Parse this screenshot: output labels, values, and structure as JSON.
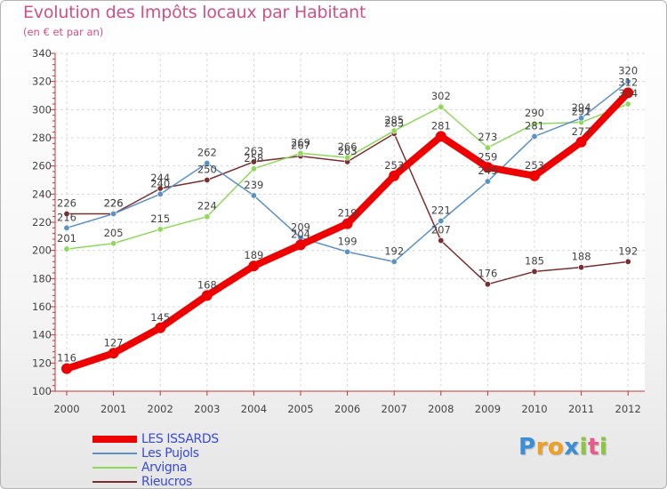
{
  "chart_data": {
    "type": "line",
    "title": "Evolution des Impôts locaux par Habitant",
    "subtitle": "(en € et par an)",
    "xlabel": "",
    "ylabel": "",
    "categories": [
      "2000",
      "2001",
      "2002",
      "2003",
      "2004",
      "2005",
      "2006",
      "2007",
      "2008",
      "2009",
      "2010",
      "2011",
      "2012"
    ],
    "ylim": [
      100,
      340
    ],
    "yticks": [
      100,
      120,
      140,
      160,
      180,
      200,
      220,
      240,
      260,
      280,
      300,
      320,
      340
    ],
    "grid": true,
    "legend_position": "bottom-left",
    "series": [
      {
        "name": "Rieucros",
        "color": "#7a2e2e",
        "values": [
          226,
          226,
          244,
          250,
          263,
          267,
          263,
          283,
          207,
          176,
          185,
          188,
          192
        ]
      },
      {
        "name": "Arvigna",
        "color": "#8fd85a",
        "values": [
          201,
          205,
          215,
          224,
          258,
          269,
          266,
          285,
          302,
          273,
          290,
          291,
          304
        ]
      },
      {
        "name": "Les Pujols",
        "color": "#5a92c8",
        "values": [
          216,
          226,
          240,
          262,
          239,
          209,
          199,
          192,
          221,
          249,
          281,
          294,
          320
        ]
      },
      {
        "name": "LES ISSARDS",
        "color": "#ee0000",
        "values": [
          116,
          127,
          145,
          168,
          189,
          204,
          219,
          253,
          281,
          259,
          253,
          277,
          312
        ]
      }
    ]
  },
  "legend": [
    {
      "label": "LES ISSARDS",
      "color": "#ee0000"
    },
    {
      "label": "Les Pujols",
      "color": "#5a92c8"
    },
    {
      "label": "Arvigna",
      "color": "#8fd85a"
    },
    {
      "label": "Rieucros",
      "color": "#7a2e2e"
    }
  ],
  "logo": {
    "letters": [
      "P",
      "r",
      "o",
      "x",
      "i",
      "t",
      "i"
    ],
    "colors": [
      "#3a8ed8",
      "#f0a020",
      "#f0a020",
      "#3a8ed8",
      "#8ac83a",
      "#e85a8a",
      "#8ac83a"
    ]
  }
}
